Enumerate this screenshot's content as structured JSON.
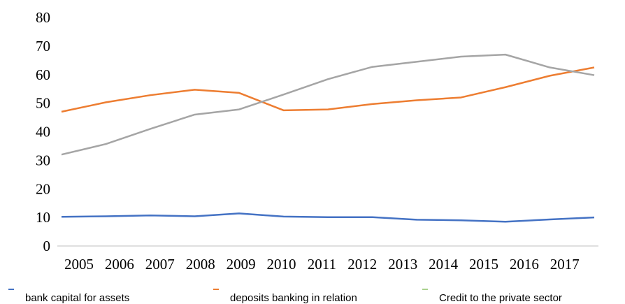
{
  "chart_data": {
    "type": "line",
    "categories": [
      "2005",
      "2006",
      "2007",
      "2008",
      "2009",
      "2010",
      "2011",
      "2012",
      "2013",
      "2014",
      "2015",
      "2016",
      "2017"
    ],
    "series": [
      {
        "name": "bank capital for assets",
        "color": "#4472c4",
        "values": [
          10.2,
          10.4,
          10.7,
          10.4,
          11.4,
          10.3,
          10.1,
          10.1,
          9.2,
          9.0,
          8.5,
          9.3,
          10.0
        ]
      },
      {
        "name": "deposits banking in relation",
        "color": "#ed7d31",
        "values": [
          47,
          50.3,
          52.8,
          54.7,
          53.6,
          47.5,
          47.8,
          49.7,
          51,
          52,
          55.6,
          59.6,
          62.5
        ]
      },
      {
        "name": "Credit to the private sector",
        "color": "#a5a5a5",
        "legend_color": "#a9d18e",
        "values": [
          32,
          35.7,
          41,
          46,
          47.8,
          53,
          58.4,
          62.7,
          64.5,
          66.3,
          67,
          62.5,
          59.8
        ]
      }
    ],
    "ylim": [
      0,
      80
    ],
    "yticks": [
      0,
      10,
      20,
      30,
      40,
      50,
      60,
      70,
      80
    ]
  }
}
